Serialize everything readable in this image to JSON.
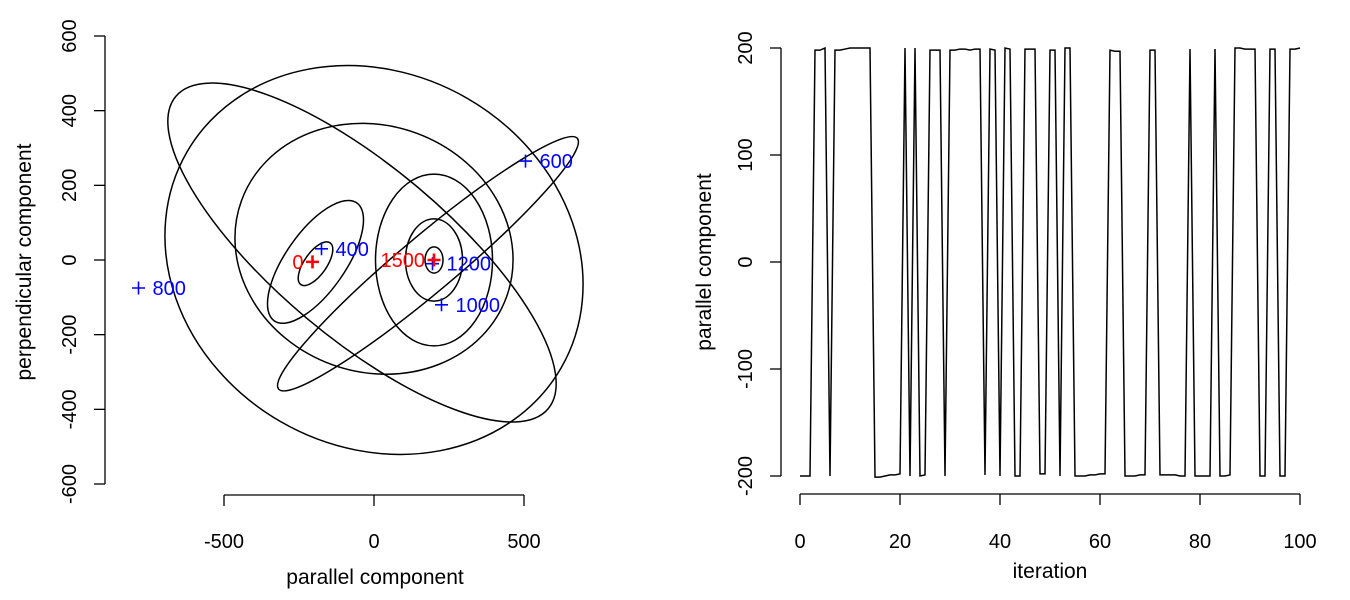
{
  "chart_data": [
    {
      "type": "scatter",
      "title": "",
      "xlabel": "parallel component",
      "ylabel": "perpendicular component",
      "xlim": [
        -900,
        750
      ],
      "ylim": [
        -600,
        600
      ],
      "xticks": [
        -500,
        0,
        500
      ],
      "yticks": [
        -600,
        -400,
        -200,
        0,
        200,
        400,
        600
      ],
      "xtick_labels": [
        "-500",
        "0",
        "500"
      ],
      "ytick_labels": [
        "-600",
        "-400",
        "-200",
        "0",
        "200",
        "400",
        "600"
      ],
      "grid": false,
      "ellipses": [
        {
          "cx": 200,
          "cy": 0,
          "rx": 30,
          "ry": 35,
          "angle": 0
        },
        {
          "cx": 200,
          "cy": 0,
          "rx": 95,
          "ry": 110,
          "angle": 0
        },
        {
          "cx": 200,
          "cy": 0,
          "rx": 195,
          "ry": 230,
          "angle": 0
        },
        {
          "cx": -195,
          "cy": -10,
          "rx": 85,
          "ry": 30,
          "angle": 55
        },
        {
          "cx": -195,
          "cy": -5,
          "rx": 240,
          "ry": 80,
          "angle": 55
        },
        {
          "cx": 180,
          "cy": -10,
          "rx": 650,
          "ry": 75,
          "angle": 40
        },
        {
          "cx": -40,
          "cy": 20,
          "rx": 810,
          "ry": 230,
          "angle": -40
        },
        {
          "cx": 0,
          "cy": 30,
          "rx": 470,
          "ry": 330,
          "angle": -20
        },
        {
          "cx": 0,
          "cy": 0,
          "rx": 720,
          "ry": 500,
          "angle": -30
        }
      ],
      "markers": [
        {
          "label": "0",
          "x": -205,
          "y": -5,
          "color": "#ff0000"
        },
        {
          "label": "400",
          "x": -175,
          "y": 30,
          "color": "#0000ff"
        },
        {
          "label": "600",
          "x": 505,
          "y": 265,
          "color": "#0000ff"
        },
        {
          "label": "800",
          "x": -785,
          "y": -75,
          "color": "#0000ff"
        },
        {
          "label": "1000",
          "x": 225,
          "y": -120,
          "color": "#0000ff"
        },
        {
          "label": "1200",
          "x": 195,
          "y": -10,
          "color": "#0000ff"
        },
        {
          "label": "1500",
          "x": 200,
          "y": 0,
          "color": "#ff0000"
        }
      ]
    },
    {
      "type": "line",
      "title": "",
      "xlabel": "iteration",
      "ylabel": "parallel component",
      "xlim": [
        0,
        100
      ],
      "ylim": [
        -200,
        200
      ],
      "xticks": [
        0,
        20,
        40,
        60,
        80,
        100
      ],
      "yticks": [
        -200,
        -100,
        0,
        100,
        200
      ],
      "xtick_labels": [
        "0",
        "20",
        "40",
        "60",
        "80",
        "100"
      ],
      "ytick_labels": [
        "-200",
        "-100",
        "0",
        "100",
        "200"
      ],
      "grid": false,
      "x": [
        0,
        1,
        2,
        3,
        4,
        5,
        6,
        7,
        8,
        9,
        10,
        11,
        12,
        13,
        14,
        15,
        16,
        17,
        18,
        19,
        20,
        21,
        22,
        23,
        24,
        25,
        26,
        27,
        28,
        29,
        30,
        31,
        32,
        33,
        34,
        35,
        36,
        37,
        38,
        39,
        40,
        41,
        42,
        43,
        44,
        45,
        46,
        47,
        48,
        49,
        50,
        51,
        52,
        53,
        54,
        55,
        56,
        57,
        58,
        59,
        60,
        61,
        62,
        63,
        64,
        65,
        66,
        67,
        68,
        69,
        70,
        71,
        72,
        73,
        74,
        75,
        76,
        77,
        78,
        79,
        80,
        81,
        82,
        83,
        84,
        85,
        86,
        87,
        88,
        89,
        90,
        91,
        92,
        93,
        94,
        95,
        96,
        97,
        98,
        99,
        100
      ],
      "y": [
        -200,
        -200,
        -200,
        198,
        198,
        200,
        -200,
        198,
        198,
        199,
        200,
        200,
        200,
        200,
        200,
        -201,
        -201,
        -200,
        -199,
        -199,
        -198,
        200,
        -200,
        200,
        -200,
        -199,
        198,
        198,
        198,
        -200,
        198,
        198,
        199,
        199,
        198,
        199,
        199,
        -199,
        199,
        198,
        -200,
        200,
        199,
        -200,
        -200,
        199,
        199,
        199,
        -198,
        -198,
        198,
        198,
        -200,
        200,
        200,
        -200,
        -200,
        -200,
        -199,
        -199,
        -198,
        -198,
        198,
        197,
        197,
        -200,
        -200,
        -200,
        -199,
        -199,
        198,
        198,
        -199,
        -199,
        -199,
        -199,
        -200,
        -200,
        199,
        -200,
        -200,
        -200,
        -200,
        199,
        -200,
        -200,
        -199,
        200,
        200,
        199,
        199,
        199,
        -200,
        -200,
        199,
        199,
        -200,
        -200,
        199,
        199,
        200
      ]
    }
  ]
}
